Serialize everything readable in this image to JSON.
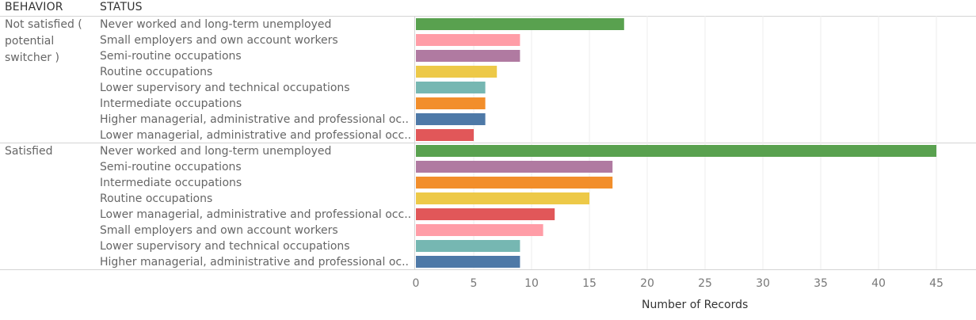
{
  "headers": {
    "behavior": "BEHAVIOR",
    "status": "STATUS"
  },
  "chart_data": {
    "type": "bar",
    "orientation": "horizontal",
    "xlabel": "Number of Records",
    "xlim": [
      0,
      48
    ],
    "ticks": [
      0,
      5,
      10,
      15,
      20,
      25,
      30,
      35,
      40,
      45
    ],
    "grid": true,
    "groups": [
      {
        "name": "Not satisfied ( potential switcher )",
        "bars": [
          {
            "label": "Never worked and long-term unemployed",
            "value": 18,
            "color": "#59a14f"
          },
          {
            "label": "Small employers and own account workers",
            "value": 9,
            "color": "#ff9da7"
          },
          {
            "label": "Semi-routine occupations",
            "value": 9,
            "color": "#b07aa1"
          },
          {
            "label": "Routine occupations",
            "value": 7,
            "color": "#edc948"
          },
          {
            "label": "Lower supervisory and technical occupations",
            "value": 6,
            "color": "#76b7b2"
          },
          {
            "label": "Intermediate occupations",
            "value": 6,
            "color": "#f28e2b"
          },
          {
            "label": "Higher managerial, administrative and professional oc..",
            "value": 6,
            "color": "#4e79a7"
          },
          {
            "label": "Lower managerial, administrative and professional occ..",
            "value": 5,
            "color": "#e15759"
          }
        ]
      },
      {
        "name": "Satisfied",
        "bars": [
          {
            "label": "Never worked and long-term unemployed",
            "value": 45,
            "color": "#59a14f"
          },
          {
            "label": "Semi-routine occupations",
            "value": 17,
            "color": "#b07aa1"
          },
          {
            "label": "Intermediate occupations",
            "value": 17,
            "color": "#f28e2b"
          },
          {
            "label": "Routine occupations",
            "value": 15,
            "color": "#edc948"
          },
          {
            "label": "Lower managerial, administrative and professional occ..",
            "value": 12,
            "color": "#e15759"
          },
          {
            "label": "Small employers and own account workers",
            "value": 11,
            "color": "#ff9da7"
          },
          {
            "label": "Lower supervisory and technical occupations",
            "value": 9,
            "color": "#76b7b2"
          },
          {
            "label": "Higher managerial, administrative and professional oc..",
            "value": 9,
            "color": "#4e79a7"
          }
        ]
      }
    ]
  }
}
